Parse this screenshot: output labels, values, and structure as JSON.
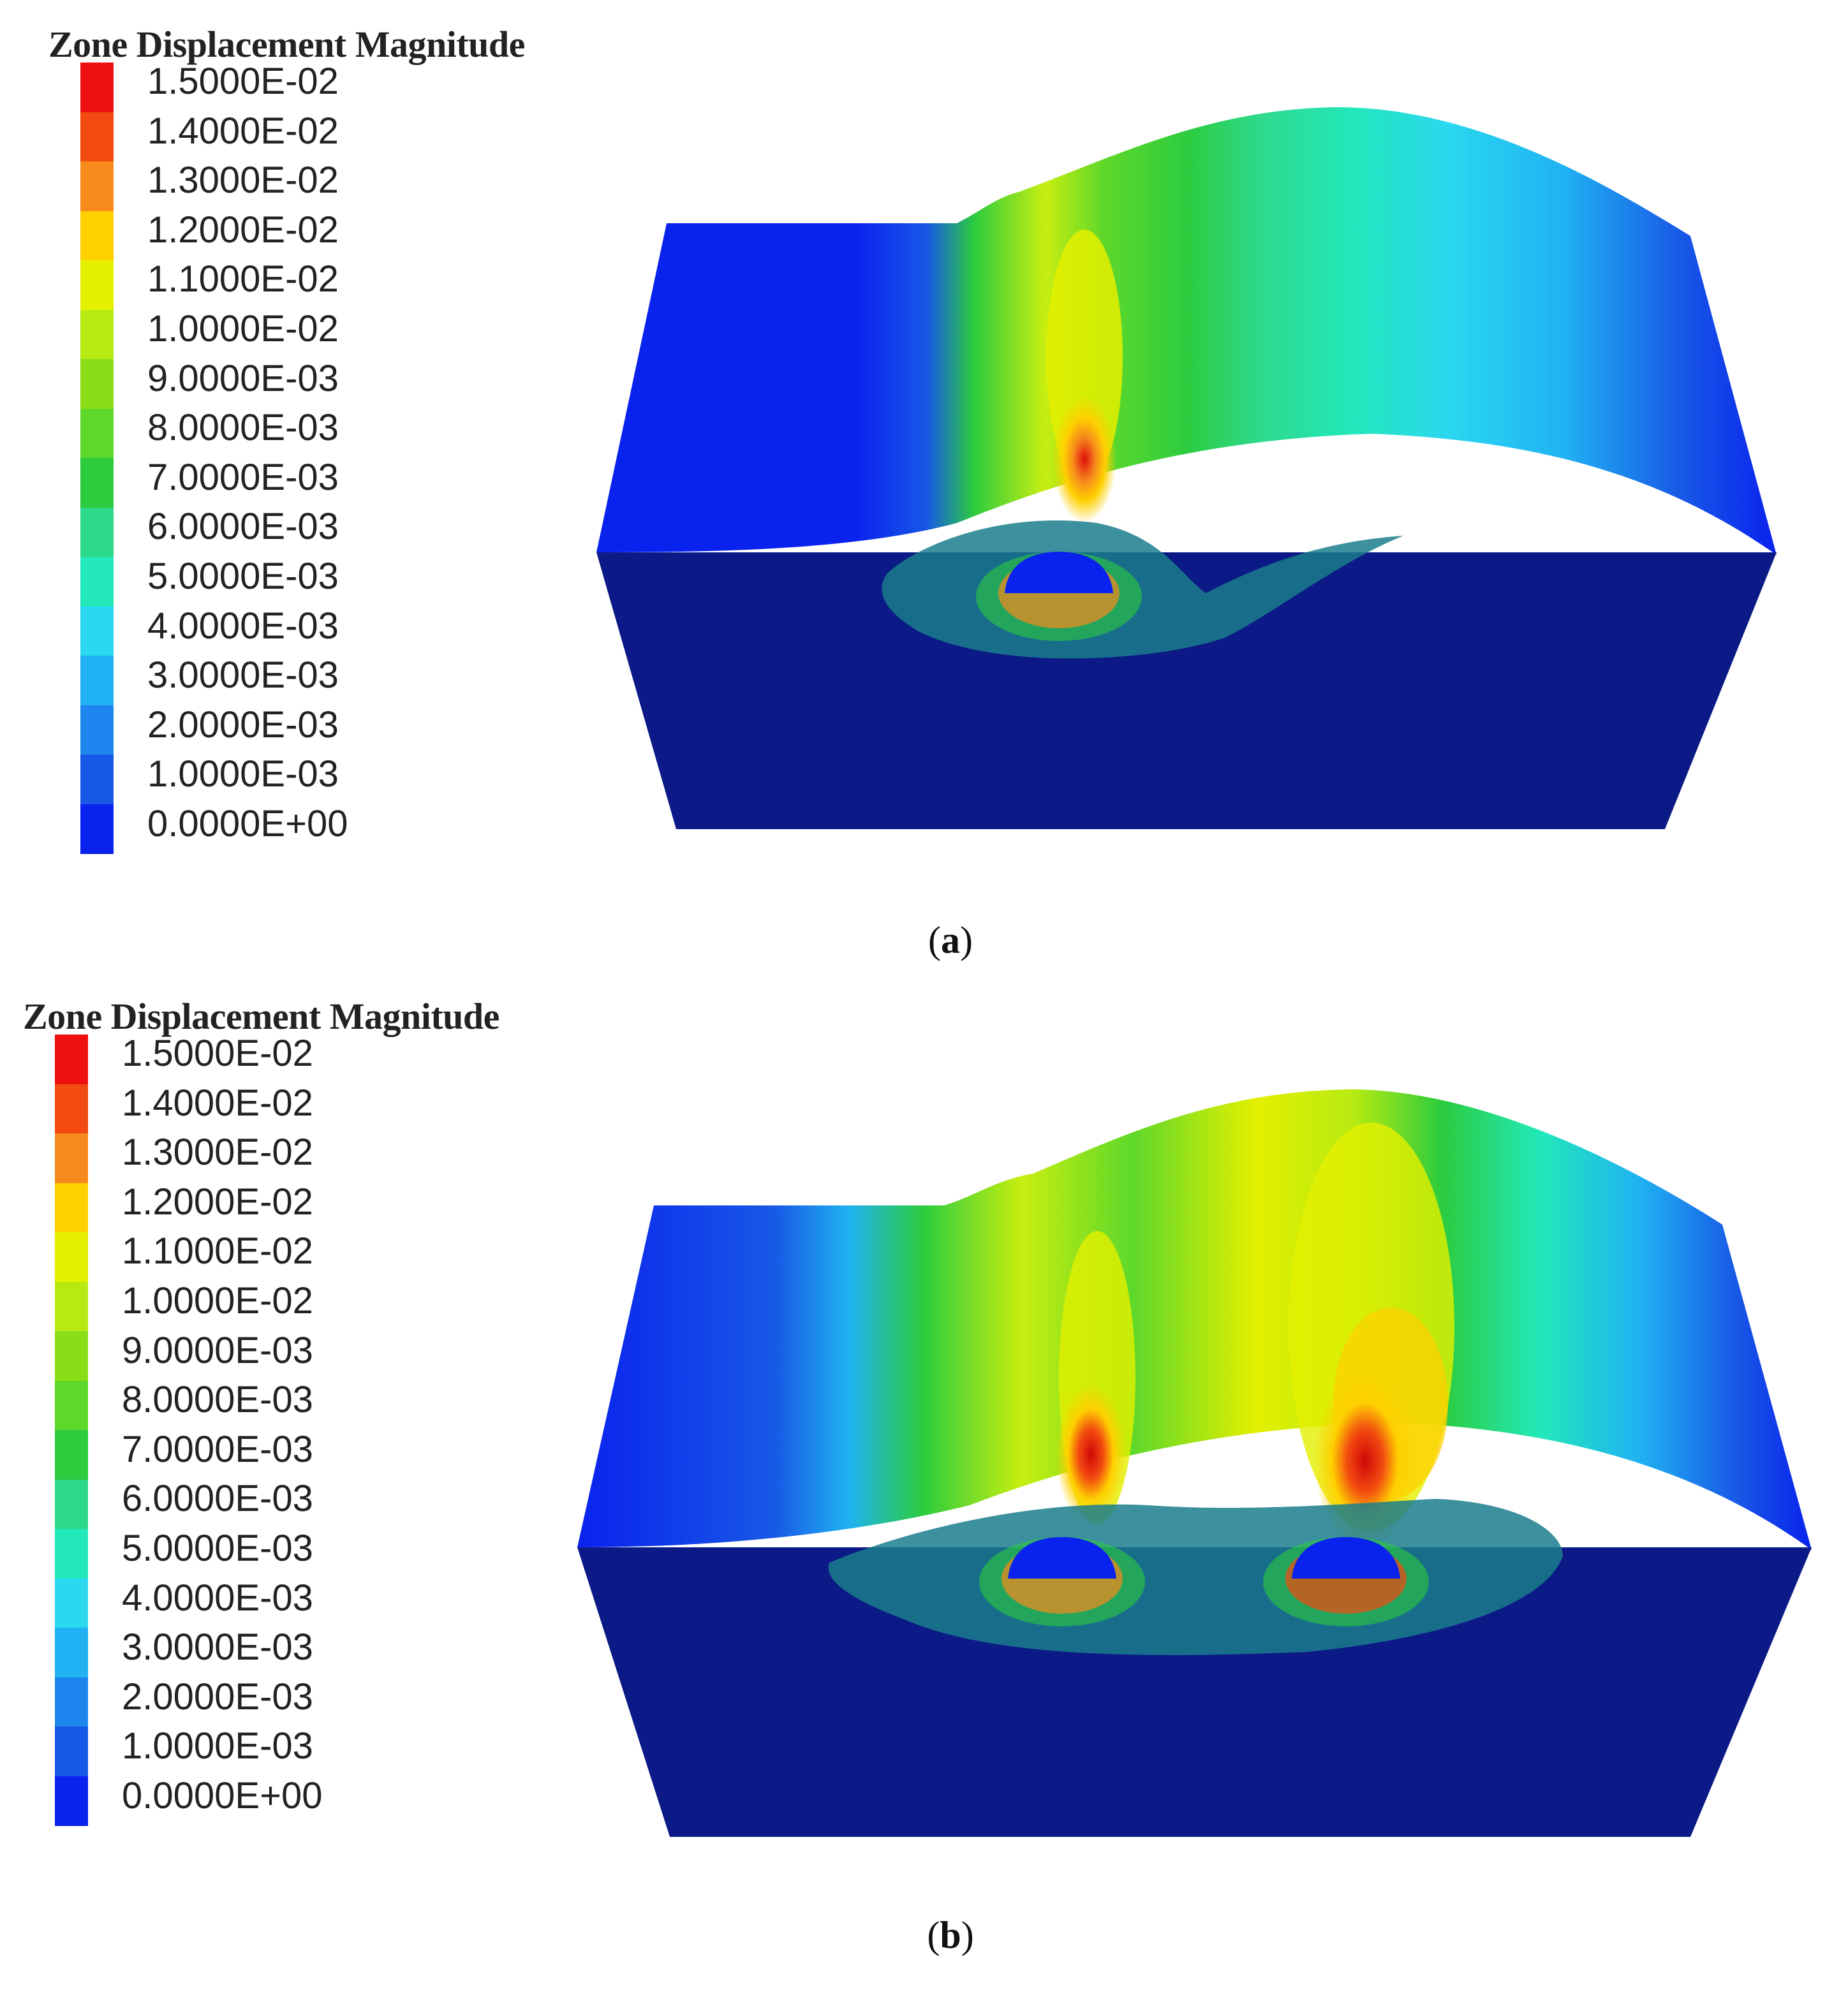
{
  "panels": [
    {
      "id": "a",
      "legend_title": "Zone Displacement Magnitude",
      "caption_label": "a",
      "tunnels": 1
    },
    {
      "id": "b",
      "legend_title": "Zone Displacement Magnitude",
      "caption_label": "b",
      "tunnels": 2
    }
  ],
  "legend": {
    "labels": [
      "1.5000E-02",
      "1.4000E-02",
      "1.3000E-02",
      "1.2000E-02",
      "1.1000E-02",
      "1.0000E-02",
      "9.0000E-03",
      "8.0000E-03",
      "7.0000E-03",
      "6.0000E-03",
      "5.0000E-03",
      "4.0000E-03",
      "3.0000E-03",
      "2.0000E-03",
      "1.0000E-03",
      "0.0000E+00"
    ],
    "colors": [
      "#ee1010",
      "#f24a10",
      "#f68a1c",
      "#fed000",
      "#e4f000",
      "#b6ea12",
      "#8ade18",
      "#5ed82a",
      "#2ccc3e",
      "#2ed88a",
      "#22e8ba",
      "#2ad8f0",
      "#20b2f2",
      "#1c86ee",
      "#1858e6",
      "#0a22ee"
    ]
  },
  "caption_parens": [
    "(",
    ")"
  ]
}
